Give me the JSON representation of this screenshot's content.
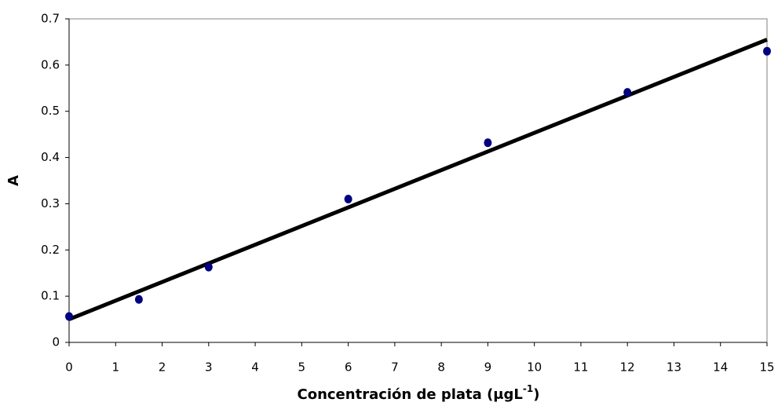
{
  "chart_data": {
    "type": "scatter",
    "x": [
      0,
      1.5,
      3,
      6,
      9,
      12,
      15
    ],
    "values": [
      0.056,
      0.093,
      0.163,
      0.31,
      0.432,
      0.541,
      0.63
    ],
    "color": "#000080",
    "trendline": {
      "x": [
        0,
        15
      ],
      "values": [
        0.05,
        0.655
      ],
      "color": "#000000"
    },
    "xlim": [
      0,
      15
    ],
    "xticks": [
      0,
      1,
      2,
      3,
      4,
      5,
      6,
      7,
      8,
      9,
      10,
      11,
      12,
      13,
      14,
      15
    ],
    "ylim": [
      0,
      0.7
    ],
    "yticks": [
      0,
      0.1,
      0.2,
      0.3,
      0.4,
      0.5,
      0.6,
      0.7
    ],
    "grid": false,
    "xlabel": [
      "Concentración de plata (μgL",
      "-1",
      ")"
    ],
    "ylabel": "A"
  }
}
